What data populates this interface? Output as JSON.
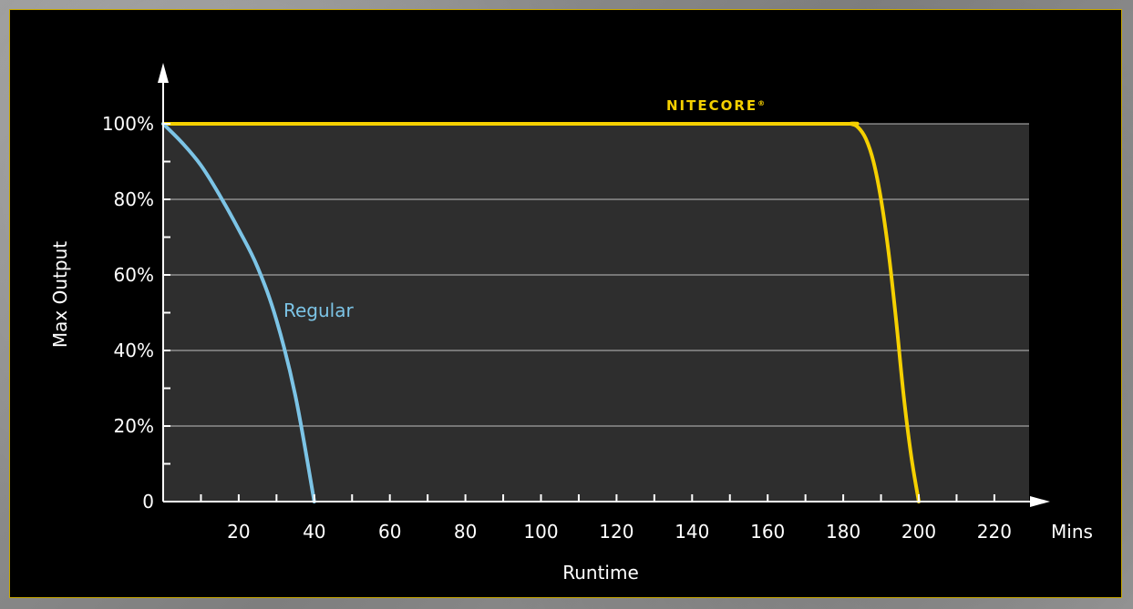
{
  "chart_data": {
    "type": "line",
    "xlabel": "Runtime",
    "ylabel": "Max Output",
    "x_unit_label": "Mins",
    "xlim": [
      0,
      230
    ],
    "ylim": [
      0,
      115
    ],
    "x_ticks": [
      20,
      40,
      60,
      80,
      100,
      120,
      140,
      160,
      180,
      200,
      220
    ],
    "x_tick_labels": [
      "20",
      "40",
      "60",
      "80",
      "100",
      "120",
      "140",
      "160",
      "180",
      "200",
      "220"
    ],
    "y_ticks": [
      0,
      20,
      40,
      60,
      80,
      100
    ],
    "y_tick_labels": [
      "0",
      "20%",
      "40%",
      "60%",
      "80%",
      "100%"
    ],
    "grid": true,
    "series": [
      {
        "name": "NITECORE",
        "label": "NITECORE",
        "trademark": "®",
        "color": "#f5d000",
        "x": [
          0,
          20,
          60,
          100,
          140,
          180,
          182,
          184,
          186,
          188,
          190,
          192,
          194,
          196,
          198,
          200
        ],
        "y": [
          100,
          100,
          100,
          100,
          100,
          100,
          100,
          99,
          96,
          90,
          80,
          66,
          48,
          28,
          12,
          0
        ]
      },
      {
        "name": "Regular",
        "label": "Regular",
        "color": "#7cc4e6",
        "x": [
          0,
          5,
          10,
          15,
          20,
          25,
          30,
          35,
          40
        ],
        "y": [
          100,
          95,
          89,
          81,
          72,
          62,
          48,
          28,
          0
        ]
      }
    ]
  }
}
